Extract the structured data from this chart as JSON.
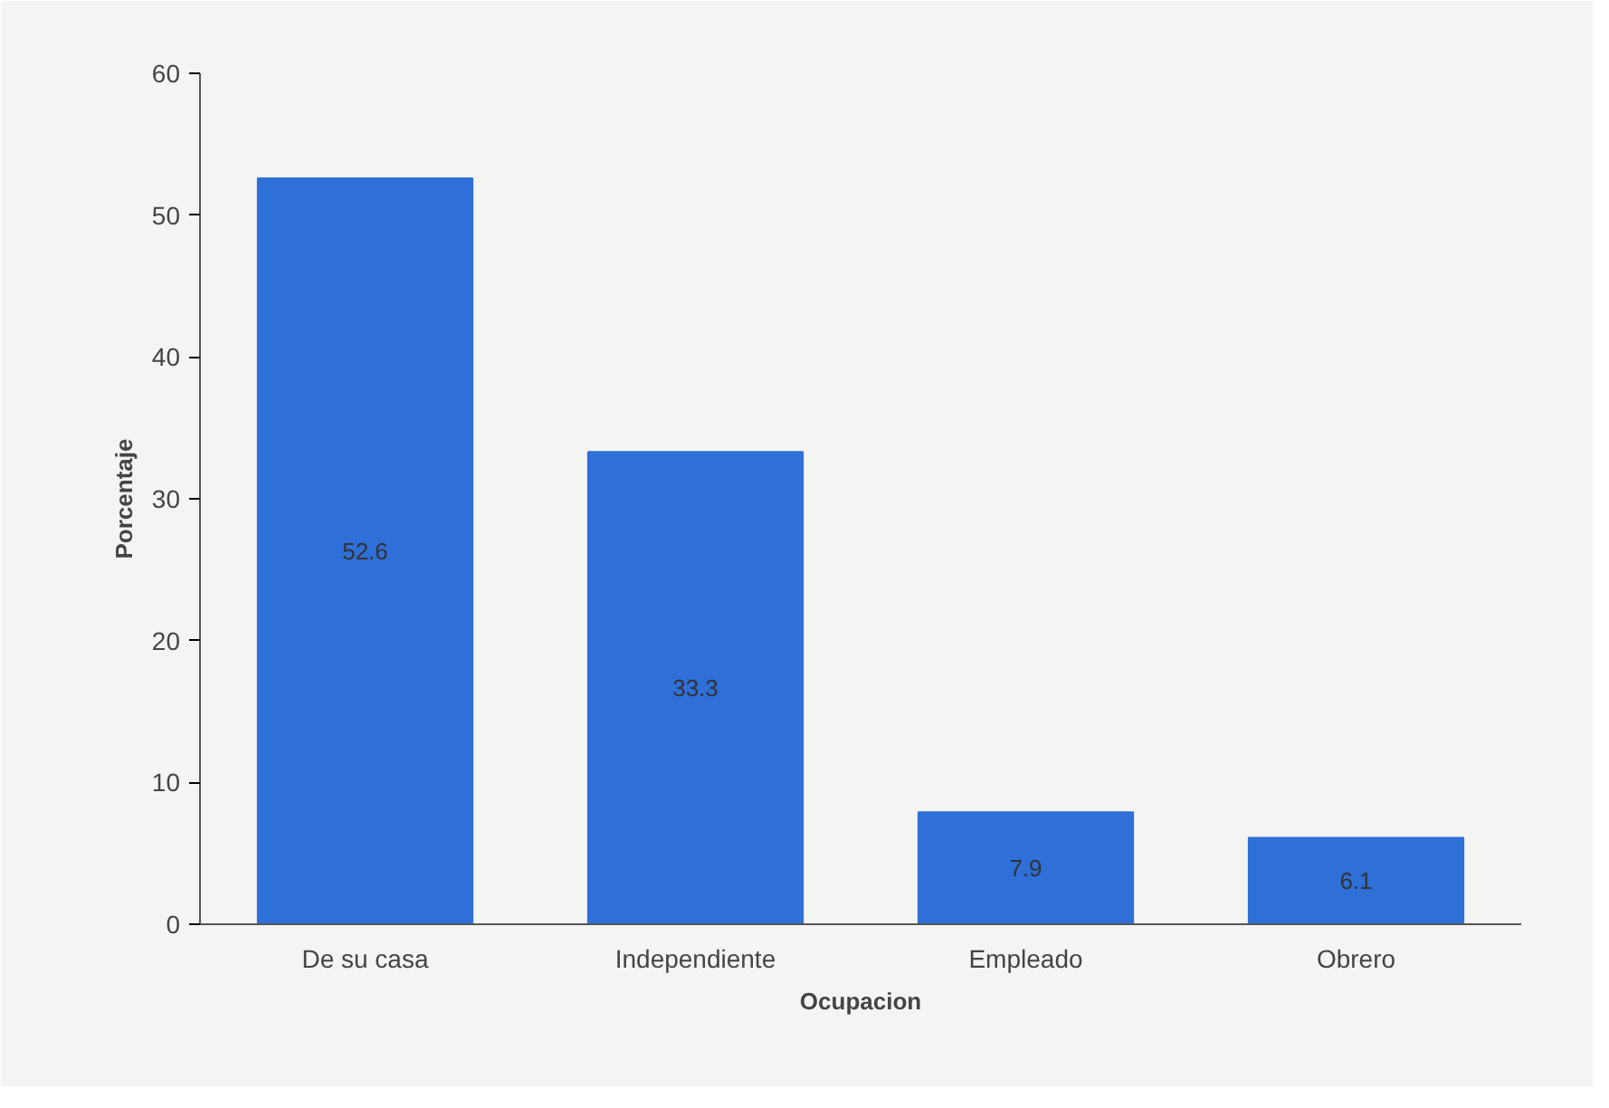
{
  "chart_data": {
    "type": "bar",
    "categories": [
      "De su casa",
      "Independiente",
      "Empleado",
      "Obrero"
    ],
    "values": [
      52.6,
      33.3,
      7.9,
      6.1
    ],
    "color": "#2e6fd8",
    "xlabel": "Ocupacion",
    "ylabel": "Porcentaje",
    "ylim": [
      0,
      60
    ],
    "yticks": [
      0,
      10,
      20,
      30,
      40,
      50,
      60
    ],
    "data_labels": true,
    "grid": false
  }
}
